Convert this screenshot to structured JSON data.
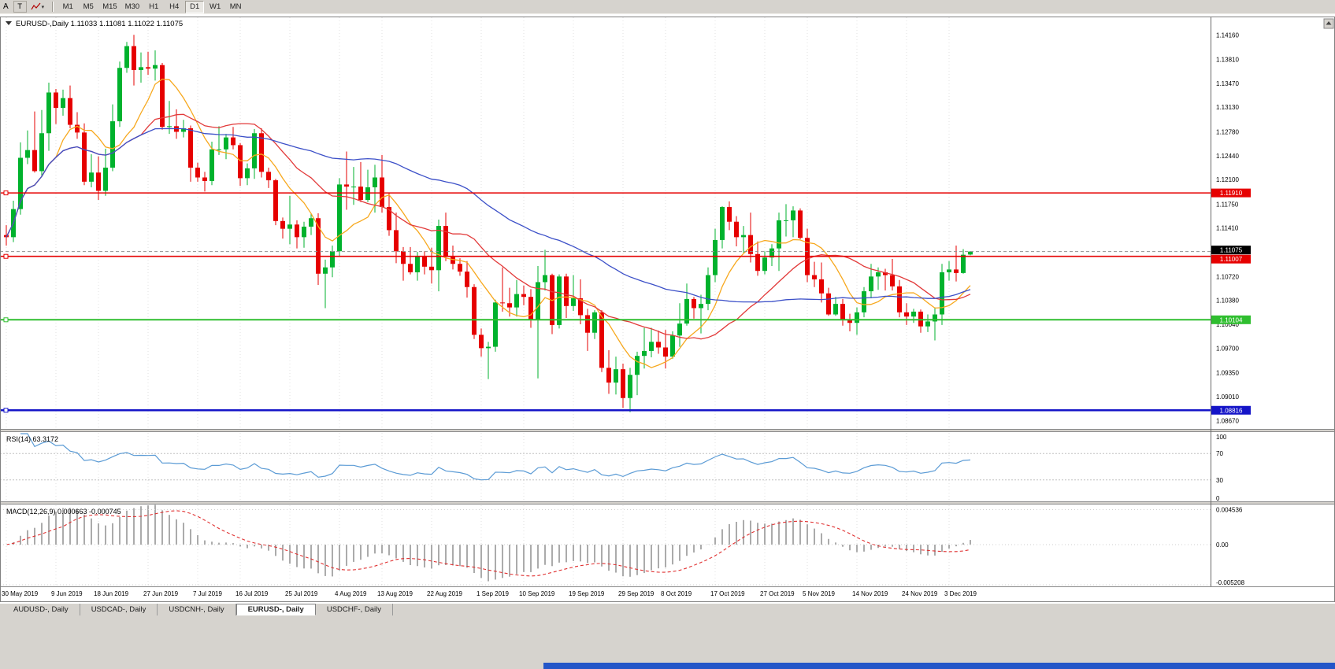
{
  "toolbar": {
    "left_label": "A",
    "text_tool": "T",
    "timeframes": [
      "M1",
      "M5",
      "M15",
      "M30",
      "H1",
      "H4",
      "D1",
      "W1",
      "MN"
    ],
    "active_timeframe": "D1"
  },
  "tabs": {
    "items": [
      {
        "label": "AUDUSD-, Daily"
      },
      {
        "label": "USDCAD-, Daily"
      },
      {
        "label": "USDCNH-, Daily"
      },
      {
        "label": "EURUSD-, Daily"
      },
      {
        "label": "USDCHF-, Daily"
      }
    ],
    "active": "EURUSD-, Daily"
  },
  "colors": {
    "toolbar_bg": "#d6d3ce",
    "taskbar_blue": "#2456c8"
  },
  "chart_data": {
    "type": "candlestick-with-indicators",
    "symbol": "EURUSD-",
    "timeframe": "Daily",
    "title": "EURUSD-,Daily 1.11033 1.11081 1.11022 1.11075",
    "ohlc_display": {
      "open": "1.11033",
      "high": "1.11081",
      "low": "1.11022",
      "close": "1.11075"
    },
    "style": {
      "background": "#ffffff",
      "grid_color": "#e2e2e2",
      "bull_color": "#00b22d",
      "bear_color": "#e60000"
    },
    "y_axis": {
      "labels": [
        "1.14160",
        "1.13810",
        "1.13470",
        "1.13130",
        "1.12780",
        "1.12440",
        "1.12100",
        "1.11750",
        "1.11410",
        "1.10720",
        "1.10380",
        "1.10040",
        "1.09700",
        "1.09350",
        "1.09010",
        "1.08670"
      ]
    },
    "x_axis": {
      "ticks": [
        {
          "label": "30 May 2019",
          "index": 0
        },
        {
          "label": "9 Jun 2019",
          "index": 7
        },
        {
          "label": "18 Jun 2019",
          "index": 13
        },
        {
          "label": "27 Jun 2019",
          "index": 20
        },
        {
          "label": "7 Jul 2019",
          "index": 27
        },
        {
          "label": "16 Jul 2019",
          "index": 33
        },
        {
          "label": "25 Jul 2019",
          "index": 40
        },
        {
          "label": "4 Aug 2019",
          "index": 47
        },
        {
          "label": "13 Aug 2019",
          "index": 53
        },
        {
          "label": "22 Aug 2019",
          "index": 60
        },
        {
          "label": "1 Sep 2019",
          "index": 67
        },
        {
          "label": "10 Sep 2019",
          "index": 73
        },
        {
          "label": "19 Sep 2019",
          "index": 80
        },
        {
          "label": "29 Sep 2019",
          "index": 87
        },
        {
          "label": "8 Oct 2019",
          "index": 93
        },
        {
          "label": "17 Oct 2019",
          "index": 100
        },
        {
          "label": "27 Oct 2019",
          "index": 107
        },
        {
          "label": "5 Nov 2019",
          "index": 113
        },
        {
          "label": "14 Nov 2019",
          "index": 120
        },
        {
          "label": "24 Nov 2019",
          "index": 127
        },
        {
          "label": "3 Dec 2019",
          "index": 133
        }
      ]
    },
    "candles": [
      [
        1.1131,
        1.1145,
        1.1116,
        1.1128
      ],
      [
        1.1128,
        1.118,
        1.1121,
        1.1168
      ],
      [
        1.1168,
        1.1263,
        1.116,
        1.1241
      ],
      [
        1.1241,
        1.128,
        1.1232,
        1.1252
      ],
      [
        1.1252,
        1.1307,
        1.122,
        1.1222
      ],
      [
        1.1222,
        1.1309,
        1.1214,
        1.1276
      ],
      [
        1.1276,
        1.1348,
        1.1251,
        1.1334
      ],
      [
        1.1334,
        1.1339,
        1.1289,
        1.1312
      ],
      [
        1.1312,
        1.1338,
        1.1301,
        1.1326
      ],
      [
        1.1326,
        1.1344,
        1.1283,
        1.1288
      ],
      [
        1.1288,
        1.1306,
        1.1268,
        1.1277
      ],
      [
        1.1277,
        1.129,
        1.1202,
        1.1207
      ],
      [
        1.1207,
        1.1246,
        1.1199,
        1.122
      ],
      [
        1.122,
        1.1243,
        1.1181,
        1.1194
      ],
      [
        1.1194,
        1.1254,
        1.1187,
        1.1227
      ],
      [
        1.1227,
        1.1317,
        1.1222,
        1.1293
      ],
      [
        1.1293,
        1.1378,
        1.1285,
        1.1369
      ],
      [
        1.1369,
        1.1406,
        1.1362,
        1.14
      ],
      [
        1.14,
        1.1416,
        1.1344,
        1.1366
      ],
      [
        1.1366,
        1.1391,
        1.1348,
        1.137
      ],
      [
        1.137,
        1.1392,
        1.1359,
        1.1368
      ],
      [
        1.1368,
        1.1394,
        1.1351,
        1.1373
      ],
      [
        1.1373,
        1.1376,
        1.1281,
        1.1285
      ],
      [
        1.1285,
        1.1322,
        1.1275,
        1.1286
      ],
      [
        1.1286,
        1.131,
        1.1268,
        1.1278
      ],
      [
        1.1278,
        1.1295,
        1.127,
        1.1283
      ],
      [
        1.1283,
        1.1287,
        1.1207,
        1.1227
      ],
      [
        1.1227,
        1.1234,
        1.1207,
        1.1213
      ],
      [
        1.1213,
        1.1221,
        1.1193,
        1.1208
      ],
      [
        1.1208,
        1.1264,
        1.1202,
        1.1253
      ],
      [
        1.1253,
        1.1286,
        1.1245,
        1.1253
      ],
      [
        1.1253,
        1.1275,
        1.1239,
        1.127
      ],
      [
        1.127,
        1.1285,
        1.1253,
        1.1259
      ],
      [
        1.1259,
        1.1262,
        1.1201,
        1.1212
      ],
      [
        1.1212,
        1.1233,
        1.1202,
        1.1226
      ],
      [
        1.1226,
        1.1282,
        1.1211,
        1.1276
      ],
      [
        1.1276,
        1.1283,
        1.1213,
        1.1221
      ],
      [
        1.1221,
        1.1227,
        1.1198,
        1.1209
      ],
      [
        1.1209,
        1.1211,
        1.1145,
        1.1151
      ],
      [
        1.1151,
        1.1156,
        1.1126,
        1.114
      ],
      [
        1.114,
        1.1187,
        1.1118,
        1.1146
      ],
      [
        1.1146,
        1.1152,
        1.1112,
        1.1128
      ],
      [
        1.1128,
        1.115,
        1.1113,
        1.1143
      ],
      [
        1.1143,
        1.1162,
        1.1131,
        1.1155
      ],
      [
        1.1155,
        1.1162,
        1.106,
        1.1076
      ],
      [
        1.1076,
        1.1096,
        1.1027,
        1.1085
      ],
      [
        1.1085,
        1.1116,
        1.1071,
        1.1108
      ],
      [
        1.1108,
        1.1212,
        1.1101,
        1.1203
      ],
      [
        1.1203,
        1.125,
        1.1167,
        1.12
      ],
      [
        1.12,
        1.1228,
        1.1174,
        1.12
      ],
      [
        1.12,
        1.1235,
        1.1178,
        1.1181
      ],
      [
        1.1181,
        1.1224,
        1.1178,
        1.1199
      ],
      [
        1.1199,
        1.1231,
        1.1163,
        1.1213
      ],
      [
        1.1213,
        1.1245,
        1.1163,
        1.1171
      ],
      [
        1.1171,
        1.1191,
        1.113,
        1.1138
      ],
      [
        1.1138,
        1.1163,
        1.1091,
        1.1108
      ],
      [
        1.1108,
        1.1114,
        1.1066,
        1.109
      ],
      [
        1.109,
        1.1114,
        1.1075,
        1.1078
      ],
      [
        1.1078,
        1.1107,
        1.1066,
        1.11
      ],
      [
        1.11,
        1.1108,
        1.1075,
        1.1086
      ],
      [
        1.1086,
        1.1113,
        1.1062,
        1.1081
      ],
      [
        1.1081,
        1.1153,
        1.1051,
        1.1144
      ],
      [
        1.1144,
        1.1163,
        1.1094,
        1.1101
      ],
      [
        1.1101,
        1.1116,
        1.1082,
        1.109
      ],
      [
        1.109,
        1.1098,
        1.1073,
        1.1079
      ],
      [
        1.1079,
        1.1094,
        1.1042,
        1.1057
      ],
      [
        1.1057,
        1.1061,
        1.0983,
        1.0989
      ],
      [
        1.0989,
        1.0998,
        1.0958,
        1.097
      ],
      [
        1.097,
        1.0979,
        1.0926,
        1.0972
      ],
      [
        1.0972,
        1.1039,
        1.0965,
        1.1035
      ],
      [
        1.1035,
        1.1085,
        1.1022,
        1.1034
      ],
      [
        1.1034,
        1.1056,
        1.1015,
        1.1028
      ],
      [
        1.1028,
        1.1067,
        1.1015,
        1.1047
      ],
      [
        1.1047,
        1.1059,
        1.1031,
        1.1043
      ],
      [
        1.1043,
        1.1054,
        1.0999,
        1.101
      ],
      [
        1.101,
        1.1087,
        1.0927,
        1.1064
      ],
      [
        1.1064,
        1.111,
        1.1052,
        1.1074
      ],
      [
        1.1074,
        1.1076,
        1.099,
        1.1003
      ],
      [
        1.1003,
        1.1075,
        1.0998,
        1.1072
      ],
      [
        1.1072,
        1.1076,
        1.1013,
        1.103
      ],
      [
        1.103,
        1.1074,
        1.1023,
        1.1041
      ],
      [
        1.1041,
        1.1068,
        1.1004,
        1.1017
      ],
      [
        1.1017,
        1.1026,
        1.0966,
        1.0992
      ],
      [
        1.0992,
        1.1024,
        1.0983,
        1.1021
      ],
      [
        1.1021,
        1.1024,
        1.0936,
        1.0942
      ],
      [
        1.0942,
        1.0967,
        1.0905,
        1.0921
      ],
      [
        1.0921,
        1.0958,
        1.0904,
        1.094
      ],
      [
        1.094,
        1.0948,
        1.0885,
        1.0899
      ],
      [
        1.0899,
        1.0942,
        1.0879,
        1.0932
      ],
      [
        1.0932,
        1.0965,
        1.0903,
        1.0959
      ],
      [
        1.0959,
        1.0999,
        1.0941,
        1.0966
      ],
      [
        1.0966,
        1.0999,
        1.0957,
        1.0979
      ],
      [
        1.0979,
        1.0995,
        1.0962,
        1.0971
      ],
      [
        1.0971,
        1.0996,
        1.0941,
        1.0958
      ],
      [
        1.0958,
        1.0994,
        1.0955,
        1.0988
      ],
      [
        1.0988,
        1.1034,
        1.0972,
        1.1005
      ],
      [
        1.1005,
        1.1062,
        1.1002,
        1.104
      ],
      [
        1.104,
        1.1043,
        1.1012,
        1.1027
      ],
      [
        1.1027,
        1.1046,
        1.0991,
        1.1033
      ],
      [
        1.1033,
        1.1085,
        1.1024,
        1.1074
      ],
      [
        1.1074,
        1.114,
        1.1064,
        1.1124
      ],
      [
        1.1124,
        1.1172,
        1.1112,
        1.1171
      ],
      [
        1.1171,
        1.1179,
        1.1138,
        1.115
      ],
      [
        1.115,
        1.1158,
        1.1115,
        1.1128
      ],
      [
        1.1128,
        1.1144,
        1.1106,
        1.1131
      ],
      [
        1.1131,
        1.1163,
        1.1092,
        1.1104
      ],
      [
        1.1104,
        1.1122,
        1.1073,
        1.108
      ],
      [
        1.108,
        1.1108,
        1.1075,
        1.1099
      ],
      [
        1.1099,
        1.1118,
        1.1087,
        1.1112
      ],
      [
        1.1112,
        1.1163,
        1.108,
        1.1152
      ],
      [
        1.1152,
        1.1175,
        1.1129,
        1.1152
      ],
      [
        1.1152,
        1.1172,
        1.1128,
        1.1166
      ],
      [
        1.1166,
        1.1169,
        1.1125,
        1.1127
      ],
      [
        1.1127,
        1.114,
        1.1064,
        1.1074
      ],
      [
        1.1074,
        1.1093,
        1.1057,
        1.1068
      ],
      [
        1.1068,
        1.1092,
        1.1035,
        1.1048
      ],
      [
        1.1048,
        1.1056,
        1.1016,
        1.1018
      ],
      [
        1.1018,
        1.1043,
        1.1016,
        1.1033
      ],
      [
        1.1033,
        1.104,
        1.1002,
        1.101
      ],
      [
        1.101,
        1.1019,
        1.0994,
        1.1006
      ],
      [
        1.1006,
        1.1028,
        1.0989,
        1.1021
      ],
      [
        1.1021,
        1.1057,
        1.1014,
        1.1051
      ],
      [
        1.1051,
        1.109,
        1.1041,
        1.1072
      ],
      [
        1.1072,
        1.1085,
        1.1053,
        1.1078
      ],
      [
        1.1078,
        1.1083,
        1.1052,
        1.1074
      ],
      [
        1.1074,
        1.1097,
        1.1052,
        1.1058
      ],
      [
        1.1058,
        1.1067,
        1.1014,
        1.1021
      ],
      [
        1.1021,
        1.1034,
        1.1003,
        1.1015
      ],
      [
        1.1015,
        1.1026,
        1.1006,
        1.1022
      ],
      [
        1.1022,
        1.1025,
        1.0992,
        1.1001
      ],
      [
        1.1001,
        1.1018,
        1.0993,
        1.1008
      ],
      [
        1.1008,
        1.1028,
        1.0981,
        1.1018
      ],
      [
        1.1018,
        1.109,
        1.1003,
        1.1078
      ],
      [
        1.1078,
        1.1094,
        1.1066,
        1.1082
      ],
      [
        1.1082,
        1.1116,
        1.1065,
        1.1077
      ],
      [
        1.1077,
        1.1111,
        1.1076,
        1.1103
      ],
      [
        1.11033,
        1.11081,
        1.11022,
        1.11075
      ]
    ],
    "moving_averages": [
      {
        "name": "ma-fast",
        "period": 8,
        "color": "#f7a81d"
      },
      {
        "name": "ma-mid",
        "period": 20,
        "color": "#e23a3a"
      },
      {
        "name": "ma-slow",
        "period": 50,
        "color": "#3c50c8"
      }
    ],
    "hlines": [
      {
        "label": "1.11910",
        "value": 1.1191,
        "color": "#e60000",
        "width": 1.6,
        "tag_dy": 0
      },
      {
        "label": "1.11007",
        "value": 1.11007,
        "color": "#e60000",
        "width": 1.6,
        "tag_dy": 3.5
      },
      {
        "label": "1.10104",
        "value": 1.10104,
        "color": "#2fbe2f",
        "width": 2,
        "tag_dy": 0
      },
      {
        "label": "1.08816",
        "value": 1.08816,
        "color": "#1414c8",
        "width": 2.6,
        "tag_dy": 0
      }
    ],
    "current_price_tag": {
      "label": "1.11075",
      "value": 1.11075,
      "tag_color": "#000000",
      "tag_dy": -2
    },
    "rsi": {
      "title": "RSI(14) 63.3172",
      "value": "63.3172",
      "period": 14,
      "levels": [
        "100",
        "70",
        "30",
        "0"
      ],
      "level_values": [
        100,
        70,
        30,
        0
      ],
      "color": "#5b9bd5"
    },
    "macd": {
      "title": "MACD(12,26,9) 0.000663 -0.000745",
      "values": [
        "0.000663",
        "-0.000745"
      ],
      "fast": 12,
      "slow": 26,
      "signal": 9,
      "scale_labels": [
        "0.004536",
        "0.00",
        "-0.005208"
      ],
      "scale_values": [
        0.004536,
        0,
        -0.005208
      ],
      "hist_color": "#ababab",
      "signal_color": "#e03030"
    }
  }
}
